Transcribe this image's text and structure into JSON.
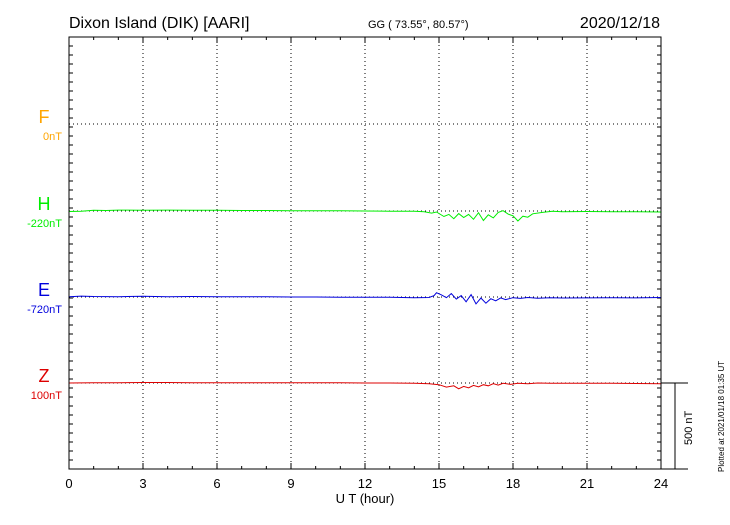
{
  "header": {
    "station": "Dixon Island (DIK)  [AARI]",
    "coords": "GG ( 73.55°,  80.57°)",
    "date": "2020/12/18"
  },
  "side_note": "Plotted at 2021/01/18 01:35 UT",
  "chart_data": {
    "type": "line",
    "xlabel": "U T (hour)",
    "xlim": [
      0,
      24
    ],
    "xticks": [
      0,
      3,
      6,
      9,
      12,
      15,
      18,
      21,
      24
    ],
    "scale_bar": {
      "value_nT": 500,
      "label": "500 nT"
    },
    "series": [
      {
        "name": "F",
        "offset_label": "0nT",
        "color": "#ffa500",
        "points": []
      },
      {
        "name": "H",
        "offset_label": "-220nT",
        "color": "#00ee00",
        "points": [
          [
            0,
            -3
          ],
          [
            0.5,
            -2
          ],
          [
            1,
            4
          ],
          [
            1.5,
            3
          ],
          [
            2,
            5
          ],
          [
            3,
            4
          ],
          [
            4,
            5
          ],
          [
            5,
            4
          ],
          [
            6,
            4
          ],
          [
            7,
            3
          ],
          [
            8,
            3
          ],
          [
            9,
            2
          ],
          [
            10,
            2
          ],
          [
            11,
            1
          ],
          [
            12,
            0
          ],
          [
            13,
            -1
          ],
          [
            14,
            -2
          ],
          [
            14.4,
            -4
          ],
          [
            14.7,
            -12
          ],
          [
            14.9,
            -6
          ],
          [
            15.2,
            -32
          ],
          [
            15.4,
            -20
          ],
          [
            15.6,
            -45
          ],
          [
            15.8,
            -15
          ],
          [
            16,
            -38
          ],
          [
            16.2,
            -20
          ],
          [
            16.4,
            -48
          ],
          [
            16.6,
            -10
          ],
          [
            16.8,
            -55
          ],
          [
            17,
            -22
          ],
          [
            17.2,
            -40
          ],
          [
            17.4,
            -8
          ],
          [
            17.6,
            2
          ],
          [
            17.8,
            -18
          ],
          [
            18,
            -28
          ],
          [
            18.2,
            -58
          ],
          [
            18.4,
            -30
          ],
          [
            18.6,
            -36
          ],
          [
            18.8,
            -16
          ],
          [
            19.2,
            -8
          ],
          [
            19.6,
            -2
          ],
          [
            20,
            -4
          ],
          [
            21,
            -3
          ],
          [
            22,
            -4
          ],
          [
            23,
            -4
          ],
          [
            24,
            -6
          ]
        ]
      },
      {
        "name": "E",
        "offset_label": "-720nT",
        "color": "#0000dd",
        "points": [
          [
            0,
            2
          ],
          [
            0.5,
            5
          ],
          [
            1,
            3
          ],
          [
            2,
            2
          ],
          [
            3,
            4
          ],
          [
            4,
            2
          ],
          [
            5,
            3
          ],
          [
            6,
            2
          ],
          [
            7,
            1
          ],
          [
            8,
            1
          ],
          [
            9,
            0
          ],
          [
            10,
            0
          ],
          [
            11,
            -1
          ],
          [
            12,
            -1
          ],
          [
            13,
            -2
          ],
          [
            14,
            -4
          ],
          [
            14.6,
            -3
          ],
          [
            14.8,
            8
          ],
          [
            14.9,
            25
          ],
          [
            15.1,
            12
          ],
          [
            15.3,
            -4
          ],
          [
            15.5,
            20
          ],
          [
            15.7,
            -12
          ],
          [
            15.9,
            8
          ],
          [
            16.1,
            -28
          ],
          [
            16.3,
            14
          ],
          [
            16.5,
            -40
          ],
          [
            16.7,
            -6
          ],
          [
            16.9,
            -36
          ],
          [
            17.1,
            -10
          ],
          [
            17.3,
            -22
          ],
          [
            17.5,
            -5
          ],
          [
            17.7,
            -15
          ],
          [
            18,
            -4
          ],
          [
            18.3,
            -8
          ],
          [
            18.6,
            -3
          ],
          [
            19,
            -7
          ],
          [
            19.5,
            -4
          ],
          [
            20,
            -6
          ],
          [
            21,
            -5
          ],
          [
            22,
            -4
          ],
          [
            23,
            -5
          ],
          [
            24,
            -3
          ]
        ]
      },
      {
        "name": "Z",
        "offset_label": "100nT",
        "color": "#dd0000",
        "points": [
          [
            0,
            0
          ],
          [
            1,
            1
          ],
          [
            2,
            2
          ],
          [
            3,
            3
          ],
          [
            4,
            3
          ],
          [
            5,
            2
          ],
          [
            6,
            2
          ],
          [
            7,
            2
          ],
          [
            8,
            2
          ],
          [
            9,
            1
          ],
          [
            10,
            1
          ],
          [
            11,
            1
          ],
          [
            12,
            0
          ],
          [
            13,
            0
          ],
          [
            14,
            -1
          ],
          [
            14.6,
            -4
          ],
          [
            15,
            -10
          ],
          [
            15.3,
            -24
          ],
          [
            15.6,
            -16
          ],
          [
            15.8,
            -34
          ],
          [
            16,
            -20
          ],
          [
            16.2,
            -28
          ],
          [
            16.4,
            -14
          ],
          [
            16.6,
            -22
          ],
          [
            16.8,
            -10
          ],
          [
            17,
            -16
          ],
          [
            17.2,
            -4
          ],
          [
            17.4,
            -12
          ],
          [
            17.6,
            -2
          ],
          [
            17.9,
            -8
          ],
          [
            18.2,
            -1
          ],
          [
            18.6,
            -4
          ],
          [
            19,
            0
          ],
          [
            19.5,
            -1
          ],
          [
            20,
            -1
          ],
          [
            21,
            -1
          ],
          [
            22,
            -2
          ],
          [
            23,
            -3
          ],
          [
            24,
            -4
          ]
        ]
      }
    ]
  }
}
